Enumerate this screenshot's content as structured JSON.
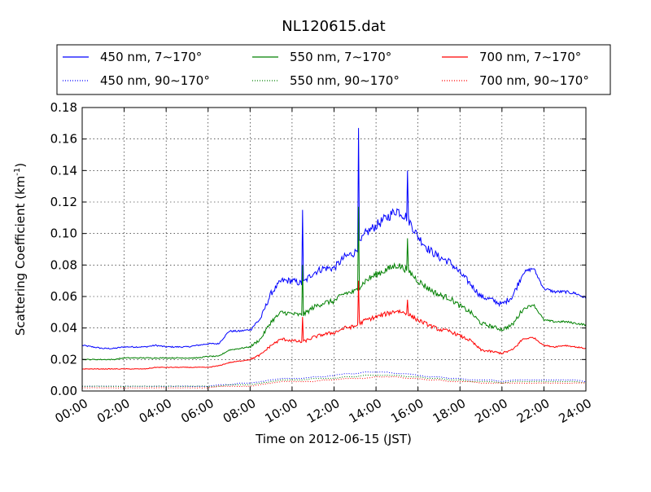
{
  "chart_data": {
    "type": "line",
    "title": "NL120615.dat",
    "xlabel": "Time on 2012-06-15 (JST)",
    "ylabel": "Scattering Coefficient (km",
    "ylabel_exponent": "-1",
    "ylabel_suffix": ")",
    "xlim": [
      "00:00",
      "24:00"
    ],
    "ylim": [
      0,
      0.18
    ],
    "grid": true,
    "legend_placement": "top",
    "x_tick_labels": [
      "00:00",
      "02:00",
      "04:00",
      "06:00",
      "08:00",
      "10:00",
      "12:00",
      "14:00",
      "16:00",
      "18:00",
      "20:00",
      "22:00",
      "24:00"
    ],
    "y_tick_labels": [
      "0.00",
      "0.02",
      "0.04",
      "0.06",
      "0.08",
      "0.10",
      "0.12",
      "0.14",
      "0.16",
      "0.18"
    ],
    "x_hours": [
      0,
      0.5,
      1,
      1.5,
      2,
      2.5,
      3,
      3.5,
      4,
      4.5,
      5,
      5.5,
      6,
      6.5,
      7,
      7.5,
      8,
      8.5,
      9,
      9.5,
      10,
      10.5,
      11,
      11.5,
      12,
      12.5,
      13,
      13.5,
      14,
      14.5,
      15,
      15.5,
      16,
      16.5,
      17,
      17.5,
      18,
      18.5,
      19,
      19.5,
      20,
      20.5,
      21,
      21.5,
      22,
      22.5,
      23,
      23.5,
      24
    ],
    "series": [
      {
        "name": "450 nm, 7∼170°",
        "color": "#0000ff",
        "style": "solid",
        "values": [
          0.029,
          0.028,
          0.027,
          0.027,
          0.028,
          0.028,
          0.028,
          0.029,
          0.028,
          0.028,
          0.028,
          0.029,
          0.03,
          0.03,
          0.038,
          0.038,
          0.039,
          0.046,
          0.062,
          0.07,
          0.07,
          0.068,
          0.075,
          0.078,
          0.078,
          0.085,
          0.088,
          0.1,
          0.105,
          0.11,
          0.115,
          0.11,
          0.098,
          0.09,
          0.085,
          0.082,
          0.075,
          0.068,
          0.06,
          0.058,
          0.055,
          0.06,
          0.075,
          0.078,
          0.065,
          0.063,
          0.063,
          0.062,
          0.059
        ]
      },
      {
        "name": "450 nm, 90∼170°",
        "color": "#0000ff",
        "style": "dotted",
        "values": [
          0.003,
          0.003,
          0.003,
          0.003,
          0.003,
          0.003,
          0.003,
          0.003,
          0.003,
          0.003,
          0.003,
          0.003,
          0.003,
          0.004,
          0.004,
          0.005,
          0.005,
          0.006,
          0.007,
          0.008,
          0.008,
          0.008,
          0.009,
          0.009,
          0.01,
          0.011,
          0.011,
          0.012,
          0.012,
          0.012,
          0.011,
          0.011,
          0.01,
          0.009,
          0.009,
          0.008,
          0.008,
          0.007,
          0.007,
          0.007,
          0.006,
          0.007,
          0.007,
          0.007,
          0.007,
          0.007,
          0.007,
          0.007,
          0.006
        ]
      },
      {
        "name": "550 nm, 7∼170°",
        "color": "#008000",
        "style": "solid",
        "values": [
          0.02,
          0.02,
          0.02,
          0.02,
          0.021,
          0.021,
          0.021,
          0.021,
          0.021,
          0.021,
          0.021,
          0.021,
          0.022,
          0.022,
          0.026,
          0.027,
          0.028,
          0.033,
          0.044,
          0.05,
          0.049,
          0.048,
          0.053,
          0.056,
          0.057,
          0.062,
          0.063,
          0.07,
          0.074,
          0.077,
          0.08,
          0.077,
          0.07,
          0.065,
          0.061,
          0.059,
          0.054,
          0.05,
          0.043,
          0.041,
          0.039,
          0.042,
          0.052,
          0.055,
          0.045,
          0.044,
          0.044,
          0.043,
          0.042
        ]
      },
      {
        "name": "550 nm, 90∼170°",
        "color": "#008000",
        "style": "dotted",
        "values": [
          0.003,
          0.003,
          0.003,
          0.003,
          0.003,
          0.003,
          0.003,
          0.003,
          0.003,
          0.003,
          0.003,
          0.003,
          0.003,
          0.003,
          0.004,
          0.004,
          0.004,
          0.005,
          0.006,
          0.007,
          0.007,
          0.007,
          0.008,
          0.008,
          0.008,
          0.009,
          0.009,
          0.01,
          0.01,
          0.01,
          0.01,
          0.009,
          0.009,
          0.008,
          0.008,
          0.007,
          0.007,
          0.006,
          0.006,
          0.006,
          0.005,
          0.006,
          0.006,
          0.006,
          0.006,
          0.006,
          0.006,
          0.006,
          0.005
        ]
      },
      {
        "name": "700 nm, 7∼170°",
        "color": "#ff0000",
        "style": "solid",
        "values": [
          0.014,
          0.014,
          0.014,
          0.014,
          0.014,
          0.014,
          0.014,
          0.015,
          0.015,
          0.015,
          0.015,
          0.015,
          0.015,
          0.016,
          0.018,
          0.019,
          0.02,
          0.023,
          0.029,
          0.033,
          0.032,
          0.031,
          0.034,
          0.036,
          0.037,
          0.04,
          0.041,
          0.045,
          0.047,
          0.049,
          0.051,
          0.049,
          0.045,
          0.042,
          0.039,
          0.038,
          0.035,
          0.032,
          0.026,
          0.025,
          0.024,
          0.026,
          0.033,
          0.034,
          0.029,
          0.028,
          0.029,
          0.028,
          0.027
        ]
      },
      {
        "name": "700 nm, 90∼170°",
        "color": "#ff0000",
        "style": "dotted",
        "values": [
          0.002,
          0.002,
          0.002,
          0.002,
          0.002,
          0.002,
          0.002,
          0.002,
          0.002,
          0.002,
          0.002,
          0.002,
          0.002,
          0.003,
          0.003,
          0.003,
          0.003,
          0.004,
          0.005,
          0.006,
          0.006,
          0.006,
          0.006,
          0.007,
          0.007,
          0.008,
          0.008,
          0.008,
          0.009,
          0.009,
          0.009,
          0.008,
          0.008,
          0.007,
          0.007,
          0.006,
          0.006,
          0.006,
          0.005,
          0.005,
          0.005,
          0.005,
          0.005,
          0.005,
          0.005,
          0.005,
          0.005,
          0.005,
          0.005
        ]
      }
    ],
    "spikes": [
      {
        "series": 0,
        "x": 10.5,
        "y": 0.115
      },
      {
        "series": 2,
        "x": 10.5,
        "y": 0.08
      },
      {
        "series": 4,
        "x": 10.5,
        "y": 0.047
      },
      {
        "series": 0,
        "x": 13.17,
        "y": 0.167
      },
      {
        "series": 2,
        "x": 13.17,
        "y": 0.117
      },
      {
        "series": 4,
        "x": 13.17,
        "y": 0.07
      },
      {
        "series": 0,
        "x": 15.5,
        "y": 0.14
      },
      {
        "series": 2,
        "x": 15.5,
        "y": 0.097
      },
      {
        "series": 4,
        "x": 15.5,
        "y": 0.058
      }
    ]
  }
}
